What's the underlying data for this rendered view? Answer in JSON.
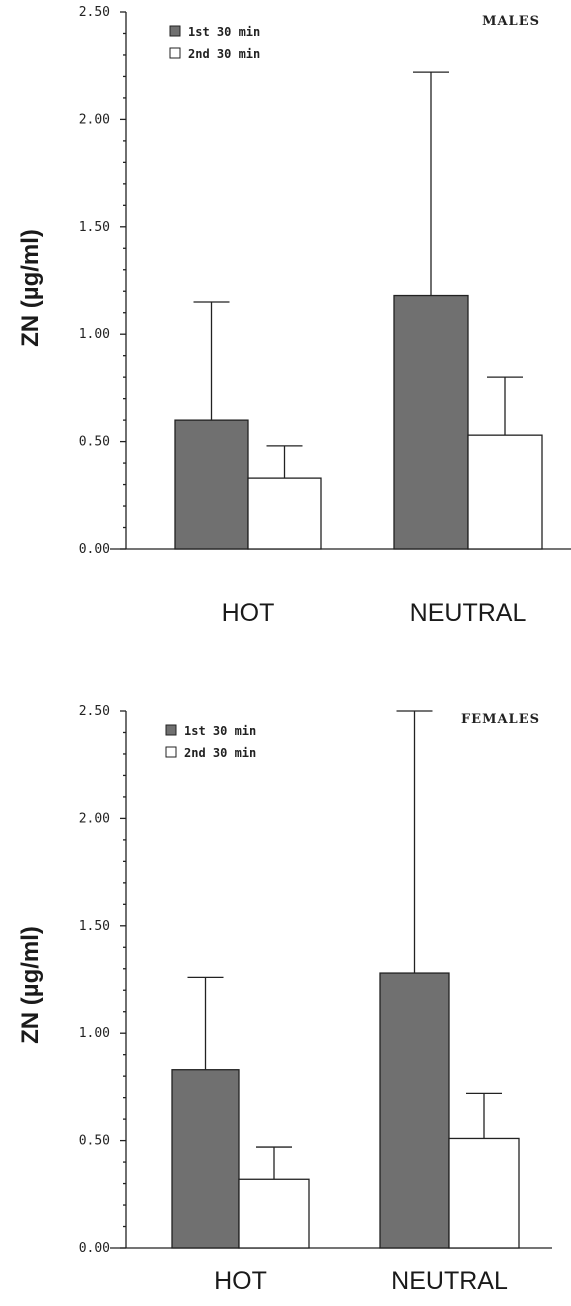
{
  "chart_data": [
    {
      "type": "bar",
      "title": "MALES",
      "ylabel": "ZN (µg/ml)",
      "xlabel": "",
      "ylim": [
        0,
        2.5
      ],
      "yticks": [
        "0.00",
        "0.50",
        "1.00",
        "1.50",
        "2.00",
        "2.50"
      ],
      "categories": [
        "HOT",
        "NEUTRAL"
      ],
      "legend_position": "top-left",
      "series": [
        {
          "name": "1st 30 min",
          "values": [
            0.6,
            1.18
          ],
          "errors": [
            0.55,
            1.04
          ],
          "color": "#707070"
        },
        {
          "name": "2nd 30 min",
          "values": [
            0.33,
            0.53
          ],
          "errors": [
            0.15,
            0.27
          ],
          "color": "#ffffff"
        }
      ]
    },
    {
      "type": "bar",
      "title": "FEMALES",
      "ylabel": "ZN (µg/ml)",
      "xlabel": "",
      "ylim": [
        0,
        2.5
      ],
      "yticks": [
        "0.00",
        "0.50",
        "1.00",
        "1.50",
        "2.00",
        "2.50"
      ],
      "categories": [
        "HOT",
        "NEUTRAL"
      ],
      "legend_position": "top-left",
      "series": [
        {
          "name": "1st 30 min",
          "values": [
            0.83,
            1.28
          ],
          "errors": [
            0.43,
            1.22
          ],
          "color": "#707070"
        },
        {
          "name": "2nd 30 min",
          "values": [
            0.32,
            0.51
          ],
          "errors": [
            0.15,
            0.21
          ],
          "color": "#ffffff"
        }
      ]
    }
  ]
}
